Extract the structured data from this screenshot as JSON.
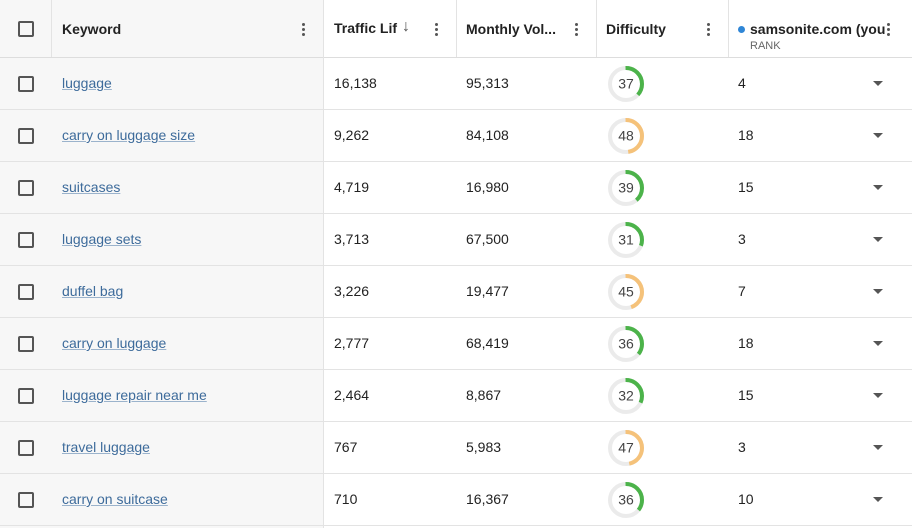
{
  "header": {
    "keyword": "Keyword",
    "traffic": "Traffic Lif",
    "volume": "Monthly Vol...",
    "difficulty": "Difficulty",
    "domain": "samsonite.com (you",
    "rank": "RANK"
  },
  "rows": [
    {
      "keyword": "luggage",
      "traffic": "16,138",
      "volume": "95,313",
      "difficulty": 37,
      "difficulty_color": "#4cb34a",
      "rank": 4
    },
    {
      "keyword": "carry on luggage size",
      "traffic": "9,262",
      "volume": "84,108",
      "difficulty": 48,
      "difficulty_color": "#f5c27a",
      "rank": 18
    },
    {
      "keyword": "suitcases",
      "traffic": "4,719",
      "volume": "16,980",
      "difficulty": 39,
      "difficulty_color": "#4cb34a",
      "rank": 15
    },
    {
      "keyword": "luggage sets",
      "traffic": "3,713",
      "volume": "67,500",
      "difficulty": 31,
      "difficulty_color": "#4cb34a",
      "rank": 3
    },
    {
      "keyword": "duffel bag",
      "traffic": "3,226",
      "volume": "19,477",
      "difficulty": 45,
      "difficulty_color": "#f5c27a",
      "rank": 7
    },
    {
      "keyword": "carry on luggage",
      "traffic": "2,777",
      "volume": "68,419",
      "difficulty": 36,
      "difficulty_color": "#4cb34a",
      "rank": 18
    },
    {
      "keyword": "luggage repair near me",
      "traffic": "2,464",
      "volume": "8,867",
      "difficulty": 32,
      "difficulty_color": "#4cb34a",
      "rank": 15
    },
    {
      "keyword": "travel luggage",
      "traffic": "767",
      "volume": "5,983",
      "difficulty": 47,
      "difficulty_color": "#f5c27a",
      "rank": 3
    },
    {
      "keyword": "carry on suitcase",
      "traffic": "710",
      "volume": "16,367",
      "difficulty": 36,
      "difficulty_color": "#4cb34a",
      "rank": 10
    }
  ]
}
